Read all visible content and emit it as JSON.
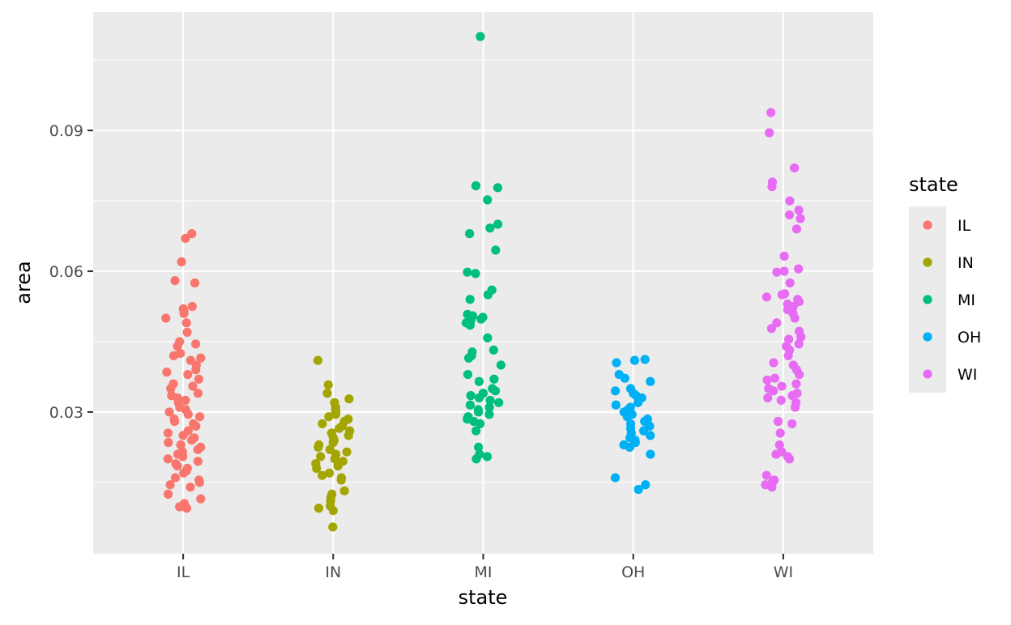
{
  "chart_data": {
    "type": "scatter",
    "title": "",
    "xlabel": "state",
    "ylabel": "area",
    "categories": [
      "IL",
      "IN",
      "MI",
      "OH",
      "WI"
    ],
    "ylim": [
      -0.0002,
      0.1152
    ],
    "y_ticks": [
      0.03,
      0.06,
      0.09
    ],
    "y_tick_labels": [
      "0.03",
      "0.06",
      "0.09"
    ],
    "grid": true,
    "jitter": true,
    "legend": {
      "title": "state",
      "position": "right",
      "entries": [
        "IL",
        "IN",
        "MI",
        "OH",
        "WI"
      ]
    },
    "colors": {
      "IL": "#F8766D",
      "IN": "#A3A500",
      "MI": "#00BF7D",
      "OH": "#00B0F6",
      "WI": "#E76BF3"
    },
    "series": [
      {
        "name": "IL",
        "values": [
          0.068,
          0.067,
          0.062,
          0.058,
          0.0575,
          0.0525,
          0.052,
          0.0515,
          0.051,
          0.05,
          0.049,
          0.047,
          0.045,
          0.0445,
          0.044,
          0.0425,
          0.042,
          0.0415,
          0.041,
          0.04,
          0.039,
          0.0385,
          0.038,
          0.037,
          0.036,
          0.0355,
          0.035,
          0.034,
          0.0335,
          0.033,
          0.0325,
          0.032,
          0.031,
          0.0305,
          0.03,
          0.0295,
          0.029,
          0.0285,
          0.028,
          0.0275,
          0.027,
          0.026,
          0.0255,
          0.025,
          0.0245,
          0.024,
          0.0235,
          0.023,
          0.0225,
          0.022,
          0.0215,
          0.021,
          0.0205,
          0.02,
          0.0195,
          0.019,
          0.0185,
          0.018,
          0.0175,
          0.017,
          0.016,
          0.0155,
          0.015,
          0.0145,
          0.014,
          0.0125,
          0.0115,
          0.0105,
          0.0098,
          0.0095
        ]
      },
      {
        "name": "IN",
        "values": [
          0.041,
          0.0358,
          0.034,
          0.0328,
          0.032,
          0.031,
          0.0305,
          0.03,
          0.0295,
          0.029,
          0.0285,
          0.028,
          0.0275,
          0.027,
          0.0265,
          0.026,
          0.0255,
          0.025,
          0.0245,
          0.024,
          0.0235,
          0.023,
          0.0225,
          0.022,
          0.0215,
          0.021,
          0.0205,
          0.02,
          0.0195,
          0.019,
          0.0185,
          0.018,
          0.017,
          0.0165,
          0.016,
          0.0155,
          0.0132,
          0.0125,
          0.0118,
          0.011,
          0.01,
          0.0095,
          0.009,
          0.0055
        ]
      },
      {
        "name": "MI",
        "values": [
          0.11,
          0.0782,
          0.0778,
          0.0752,
          0.07,
          0.0692,
          0.068,
          0.0645,
          0.0598,
          0.0595,
          0.056,
          0.055,
          0.054,
          0.0508,
          0.0505,
          0.0502,
          0.0498,
          0.0495,
          0.049,
          0.0485,
          0.0458,
          0.0432,
          0.0428,
          0.042,
          0.0415,
          0.04,
          0.038,
          0.037,
          0.0365,
          0.035,
          0.0345,
          0.034,
          0.0335,
          0.033,
          0.0325,
          0.032,
          0.0315,
          0.031,
          0.0305,
          0.03,
          0.0295,
          0.029,
          0.0285,
          0.028,
          0.0275,
          0.026,
          0.0225,
          0.021,
          0.0205,
          0.02
        ]
      },
      {
        "name": "OH",
        "values": [
          0.0412,
          0.041,
          0.0405,
          0.038,
          0.0372,
          0.0365,
          0.035,
          0.0345,
          0.034,
          0.0335,
          0.033,
          0.032,
          0.0315,
          0.031,
          0.0305,
          0.03,
          0.0295,
          0.029,
          0.0285,
          0.028,
          0.0275,
          0.027,
          0.0265,
          0.026,
          0.0255,
          0.025,
          0.0245,
          0.024,
          0.0235,
          0.023,
          0.0225,
          0.021,
          0.016,
          0.0145,
          0.0135
        ]
      },
      {
        "name": "WI",
        "values": [
          0.0938,
          0.0895,
          0.082,
          0.079,
          0.078,
          0.075,
          0.073,
          0.072,
          0.0712,
          0.069,
          0.0632,
          0.0605,
          0.06,
          0.0598,
          0.0575,
          0.0552,
          0.055,
          0.0545,
          0.054,
          0.0535,
          0.053,
          0.0525,
          0.0518,
          0.051,
          0.05,
          0.049,
          0.0478,
          0.0472,
          0.046,
          0.0455,
          0.0445,
          0.044,
          0.0432,
          0.042,
          0.0405,
          0.04,
          0.039,
          0.038,
          0.0372,
          0.0368,
          0.036,
          0.0355,
          0.035,
          0.0345,
          0.034,
          0.0335,
          0.033,
          0.0325,
          0.032,
          0.031,
          0.028,
          0.0275,
          0.0255,
          0.023,
          0.0215,
          0.021,
          0.0205,
          0.02,
          0.0165,
          0.0155,
          0.015,
          0.0145,
          0.014
        ]
      }
    ]
  }
}
